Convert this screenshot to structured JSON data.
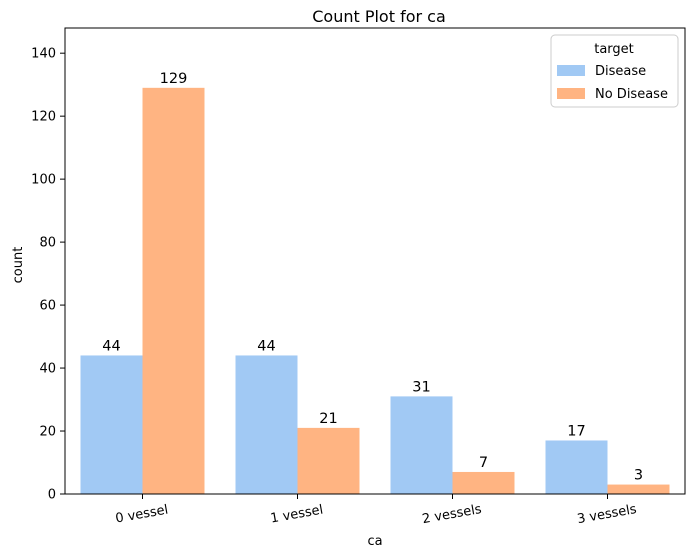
{
  "chart_data": {
    "type": "bar",
    "title": "Count Plot for ca",
    "xlabel": "ca",
    "ylabel": "count",
    "categories": [
      "0 vessel",
      "1 vessel",
      "2 vessels",
      "3 vessels"
    ],
    "series": [
      {
        "name": "Disease",
        "values": [
          44,
          44,
          31,
          17
        ],
        "color": "#a1c9f4"
      },
      {
        "name": "No Disease",
        "values": [
          129,
          21,
          7,
          3
        ],
        "color": "#ffb482"
      }
    ],
    "ylim": [
      0,
      148
    ],
    "yticks": [
      0,
      20,
      40,
      60,
      80,
      100,
      120,
      140
    ],
    "legend": {
      "title": "target",
      "position": "top-right"
    },
    "grid": false,
    "x_tick_rotation": -10
  }
}
